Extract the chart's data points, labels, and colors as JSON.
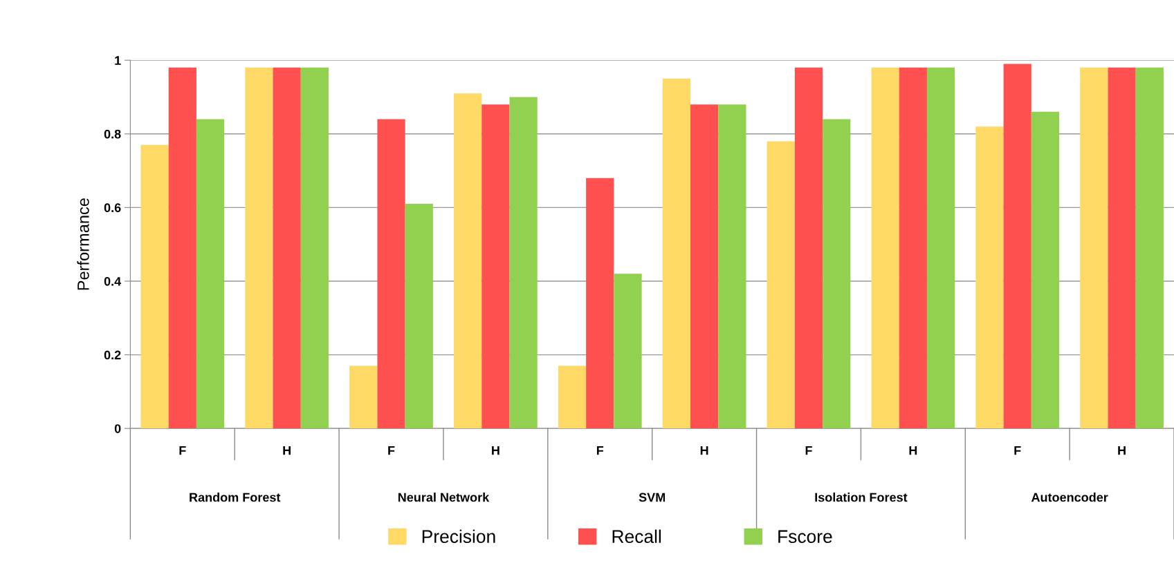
{
  "chart_data": {
    "type": "bar",
    "ylabel": "Performance",
    "categories": [
      "F",
      "H",
      "F",
      "H",
      "F",
      "H",
      "F",
      "H",
      "F",
      "H"
    ],
    "annotations": [
      "Random Forest",
      "Neural Network",
      "SVM",
      "Isolation Forest",
      "Autoencoder"
    ],
    "series": [
      {
        "name": "Precision",
        "color": "#ffd966",
        "values": [
          0.77,
          0.98,
          0.17,
          0.91,
          0.17,
          0.95,
          0.78,
          0.98,
          0.82,
          0.98
        ]
      },
      {
        "name": "Recall",
        "color": "#ff5050",
        "values": [
          0.98,
          0.98,
          0.84,
          0.88,
          0.68,
          0.88,
          0.98,
          0.98,
          0.99,
          0.98
        ]
      },
      {
        "name": "Fscore",
        "color": "#92d050",
        "values": [
          0.84,
          0.98,
          0.61,
          0.9,
          0.42,
          0.88,
          0.84,
          0.98,
          0.86,
          0.98
        ]
      }
    ],
    "ylim": [
      0,
      1
    ],
    "yticks": [
      0,
      0.2,
      0.4,
      0.6,
      0.8,
      1
    ],
    "grid": "y",
    "legend": "bottom"
  }
}
